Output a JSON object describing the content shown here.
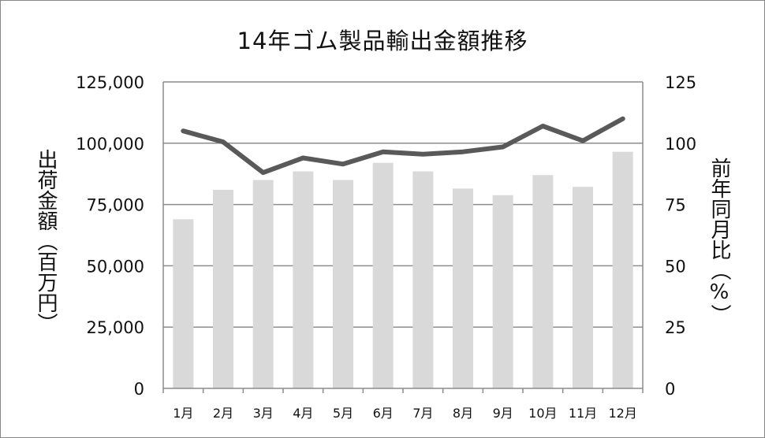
{
  "chart_data": {
    "type": "bar",
    "title": "14年ゴム製品輸出金額推移",
    "categories": [
      "1月",
      "2月",
      "3月",
      "4月",
      "5月",
      "6月",
      "7月",
      "8月",
      "9月",
      "10月",
      "11月",
      "12月"
    ],
    "ylabel": "出荷金額（百万円）",
    "y2label": "前年同月比（%）",
    "ylim": [
      0,
      125000
    ],
    "y2lim": [
      0,
      125
    ],
    "yticks": [
      "0",
      "25,000",
      "50,000",
      "75,000",
      "100,000",
      "125,000"
    ],
    "y2ticks": [
      "0",
      "25",
      "50",
      "75",
      "100",
      "125"
    ],
    "grid": true,
    "series": [
      {
        "type": "bar",
        "axis": "left",
        "color": "#d9d9d9",
        "values": [
          69000,
          81000,
          85000,
          88500,
          85000,
          92000,
          88500,
          81500,
          78800,
          87000,
          82200,
          96500
        ]
      },
      {
        "type": "line",
        "axis": "right",
        "color": "#595959",
        "values": [
          105,
          100.5,
          88,
          94,
          91.5,
          96.5,
          95.5,
          96.5,
          98.5,
          107,
          101,
          110
        ]
      }
    ]
  }
}
